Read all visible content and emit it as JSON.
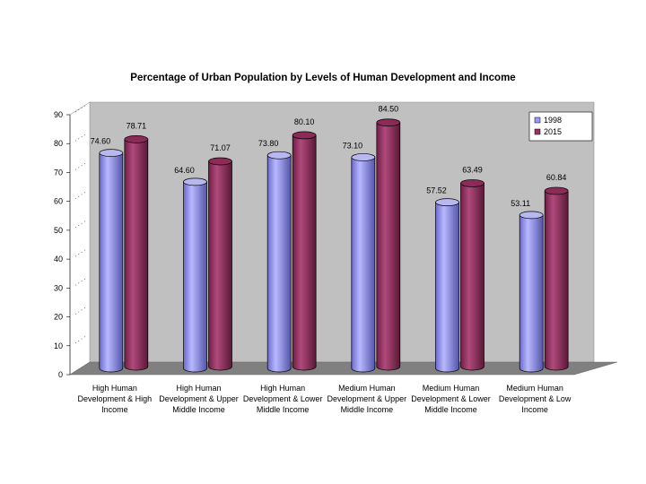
{
  "chart_data": {
    "type": "bar",
    "title": "Percentage of Urban Population by Levels of Human Development and Income",
    "categories": [
      [
        "High Human",
        "Development & High",
        "Income"
      ],
      [
        "High Human",
        "Development & Upper",
        "Middle Income"
      ],
      [
        "High Human",
        "Development & Lower",
        "Middle Income"
      ],
      [
        "Medium Human",
        "Development & Upper",
        "Middle Income"
      ],
      [
        "Medium Human",
        "Development & Lower",
        "Middle Income"
      ],
      [
        "Medium Human",
        "Development & Low",
        "Income"
      ]
    ],
    "series": [
      {
        "name": "1998",
        "values": [
          74.6,
          64.6,
          73.8,
          73.1,
          57.52,
          53.11
        ],
        "labels": [
          "74.60",
          "64.60",
          "73.80",
          "73.10",
          "57.52",
          "53.11"
        ],
        "color": "#9999ff"
      },
      {
        "name": "2015",
        "values": [
          78.71,
          71.07,
          80.1,
          84.5,
          63.49,
          60.84
        ],
        "labels": [
          "78.71",
          "71.07",
          "80.10",
          "84.50",
          "63.49",
          "60.84"
        ],
        "color": "#993366"
      }
    ],
    "ylim": [
      0,
      90
    ],
    "yticks": [
      "0",
      "10",
      "20",
      "30",
      "40",
      "50",
      "60",
      "70",
      "80",
      "90"
    ],
    "xlabel": "",
    "ylabel": "",
    "legend_position": "top-right",
    "style": "3d-cylinder",
    "wall_color": "#c0c0c0",
    "floor_color": "#808080"
  }
}
